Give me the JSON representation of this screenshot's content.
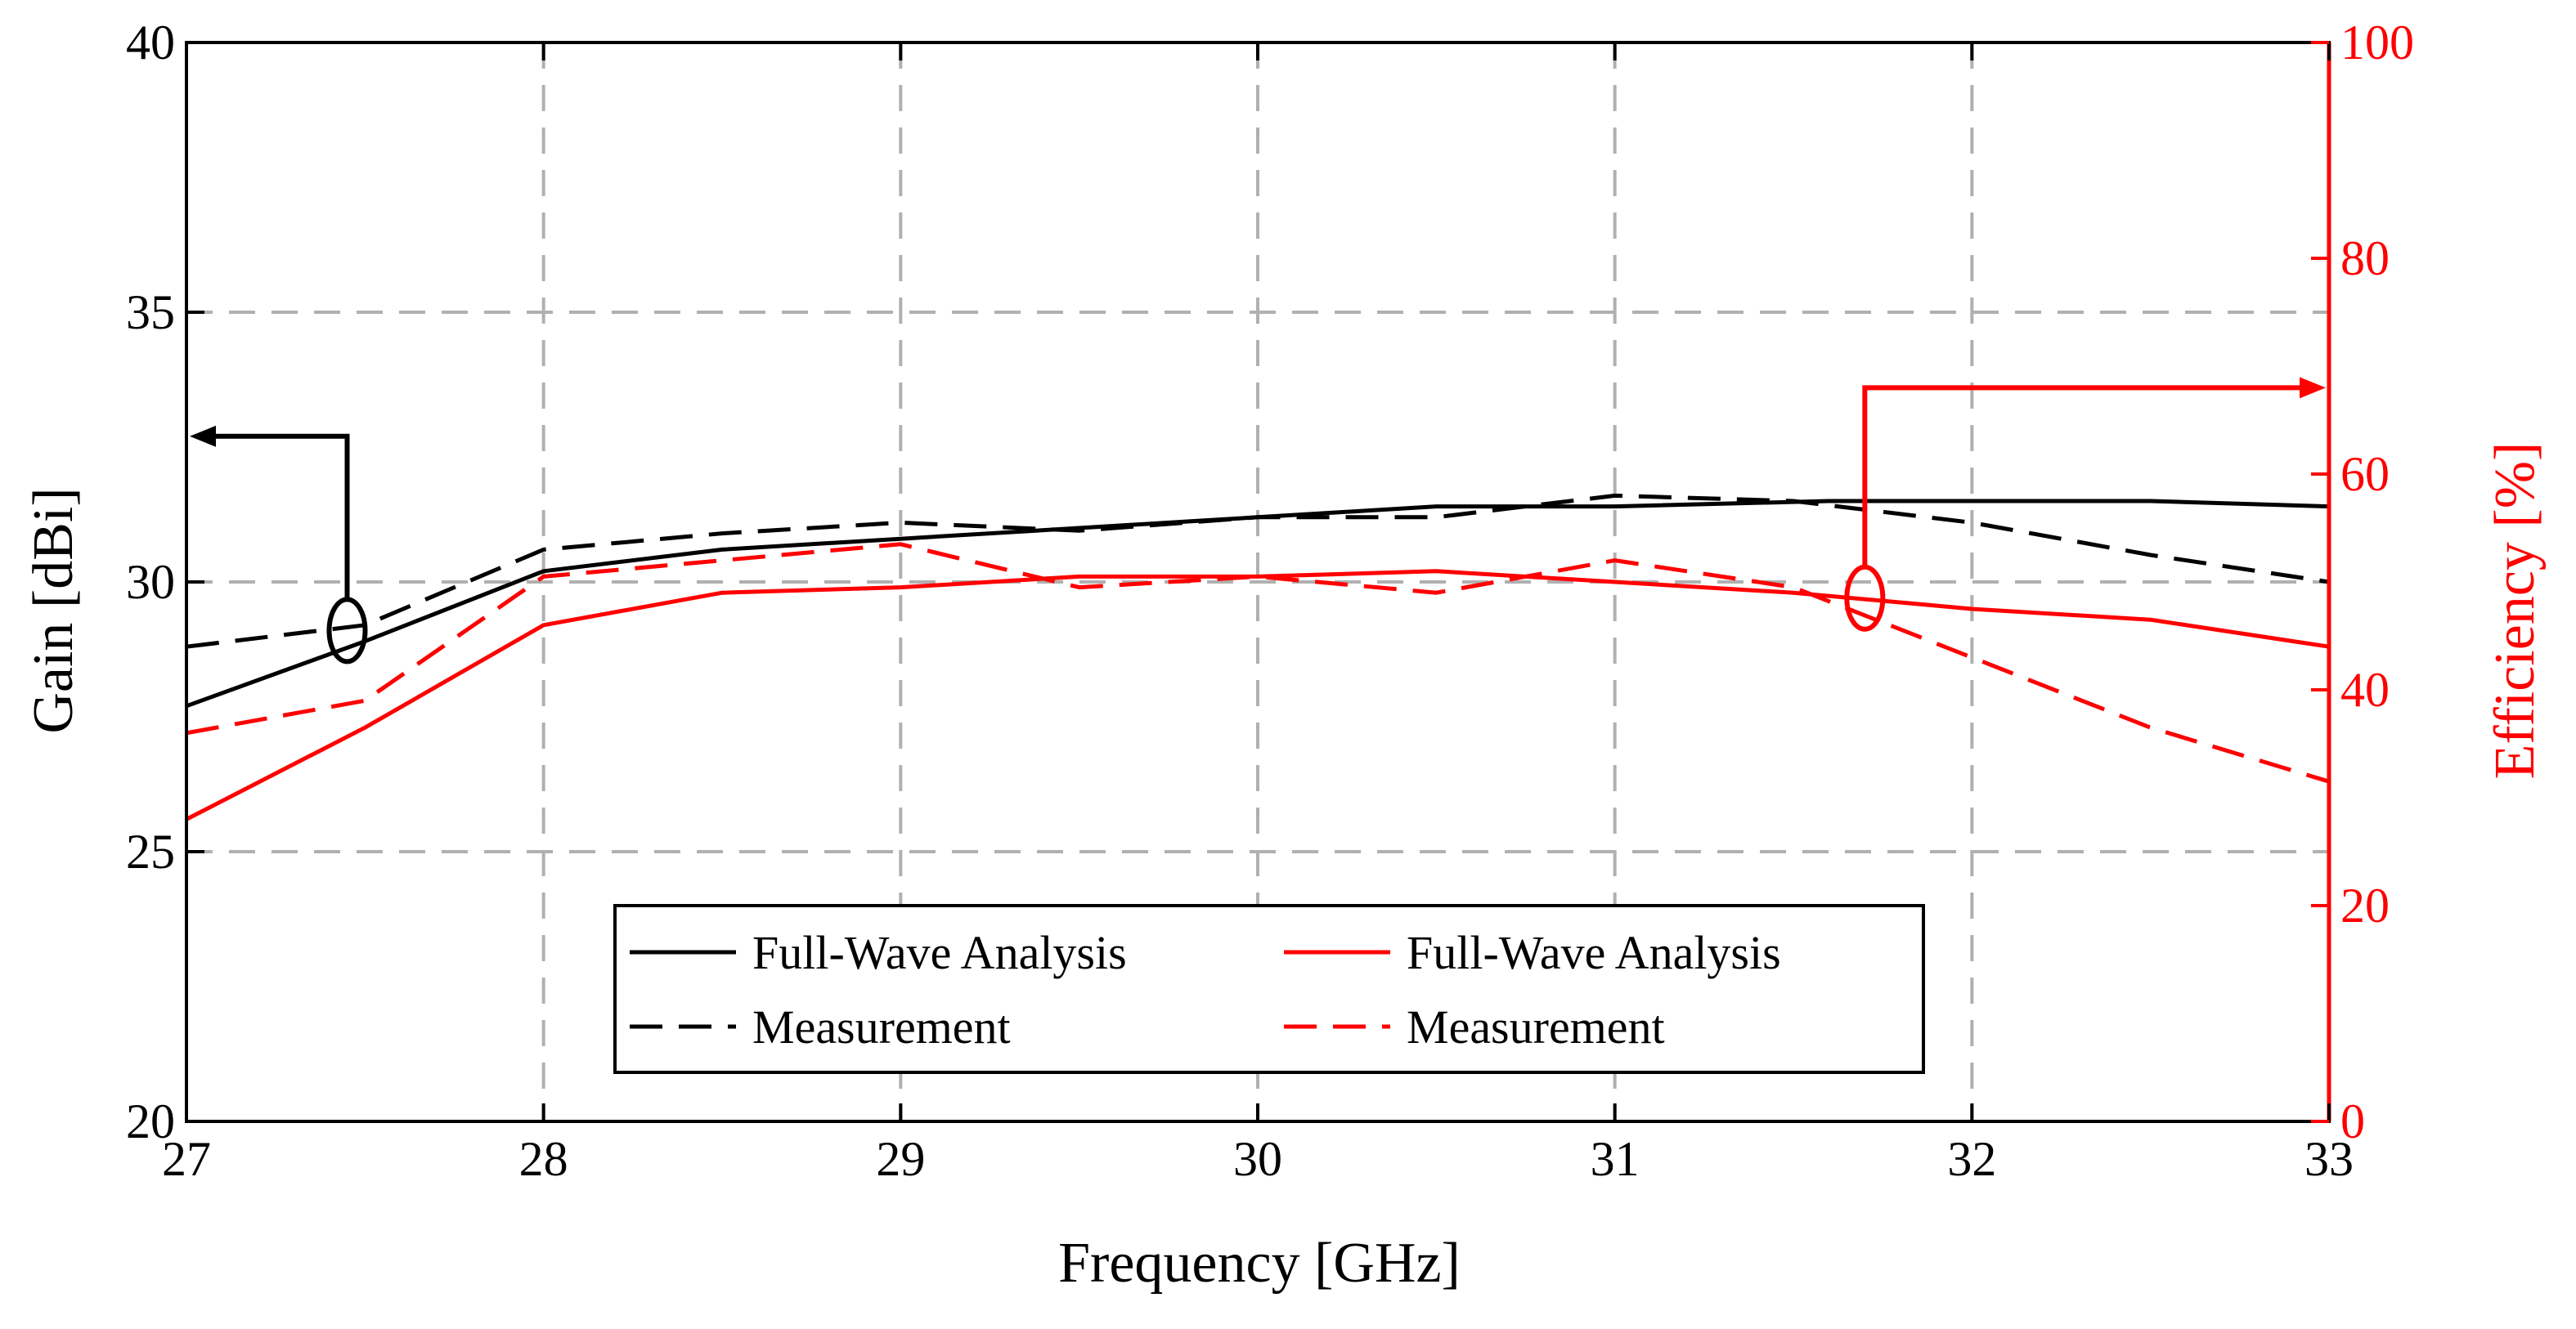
{
  "chart_data": {
    "type": "line",
    "xlabel": "Frequency [GHz]",
    "ylabel_left": "Gain [dBi]",
    "ylabel_right": "Efficiency [%]",
    "xlim": [
      27,
      33
    ],
    "ylim_left": [
      20,
      40
    ],
    "ylim_right": [
      0,
      100
    ],
    "grid": true,
    "x_ticks": [
      27,
      28,
      29,
      30,
      31,
      32,
      33
    ],
    "y_left_ticks": [
      20,
      25,
      30,
      35,
      40
    ],
    "y_right_ticks": [
      0,
      20,
      40,
      60,
      80,
      100
    ],
    "legend_position": "bottom-center",
    "colors": {
      "gain": "#000000",
      "efficiency": "#ff0000",
      "grid": "#b0b0b0"
    },
    "series": [
      {
        "name": "Full-Wave Analysis",
        "axis": "left",
        "color": "#000000",
        "style": "solid",
        "x": [
          27,
          27.5,
          28,
          28.5,
          29,
          29.5,
          30,
          30.5,
          31,
          31.6,
          32,
          32.5,
          33
        ],
        "values": [
          27.7,
          28.9,
          30.2,
          30.6,
          30.8,
          31.0,
          31.2,
          31.4,
          31.4,
          31.5,
          31.5,
          31.5,
          31.4
        ]
      },
      {
        "name": "Measurement",
        "axis": "left",
        "color": "#000000",
        "style": "dashed",
        "x": [
          27,
          27.5,
          28,
          28.5,
          29,
          29.5,
          30,
          30.5,
          31,
          31.5,
          32,
          32.5,
          33
        ],
        "values": [
          28.8,
          29.2,
          30.6,
          30.9,
          31.1,
          30.95,
          31.2,
          31.2,
          31.6,
          31.5,
          31.1,
          30.5,
          30.0
        ]
      },
      {
        "name": "Full-Wave Analysis",
        "axis": "right",
        "color": "#ff0000",
        "style": "solid",
        "x": [
          27,
          27.5,
          28,
          28.5,
          29,
          29.5,
          30,
          30.5,
          31,
          31.5,
          32,
          32.5,
          33
        ],
        "values": [
          28,
          36.5,
          46,
          49,
          49.5,
          50.5,
          50.5,
          51,
          50,
          49,
          47.5,
          46.5,
          44
        ]
      },
      {
        "name": "Measurement",
        "axis": "right",
        "color": "#ff0000",
        "style": "dashed",
        "x": [
          27,
          27.5,
          28,
          28.5,
          29,
          29.5,
          30,
          30.5,
          31,
          31.5,
          32,
          32.5,
          33
        ],
        "values": [
          36,
          39,
          50.5,
          52,
          53.5,
          49.5,
          50.5,
          49,
          52,
          49.5,
          43,
          36.5,
          31.5
        ]
      }
    ],
    "annotations": [
      {
        "target": "left",
        "color": "#000000",
        "marker_x": 27.45,
        "marker_y_left": 29.1,
        "arrow_to_y_left": 32.7
      },
      {
        "target": "right",
        "color": "#ff0000",
        "marker_x": 31.7,
        "marker_y_right": 48.5,
        "arrow_to_y_right": 68
      }
    ]
  }
}
